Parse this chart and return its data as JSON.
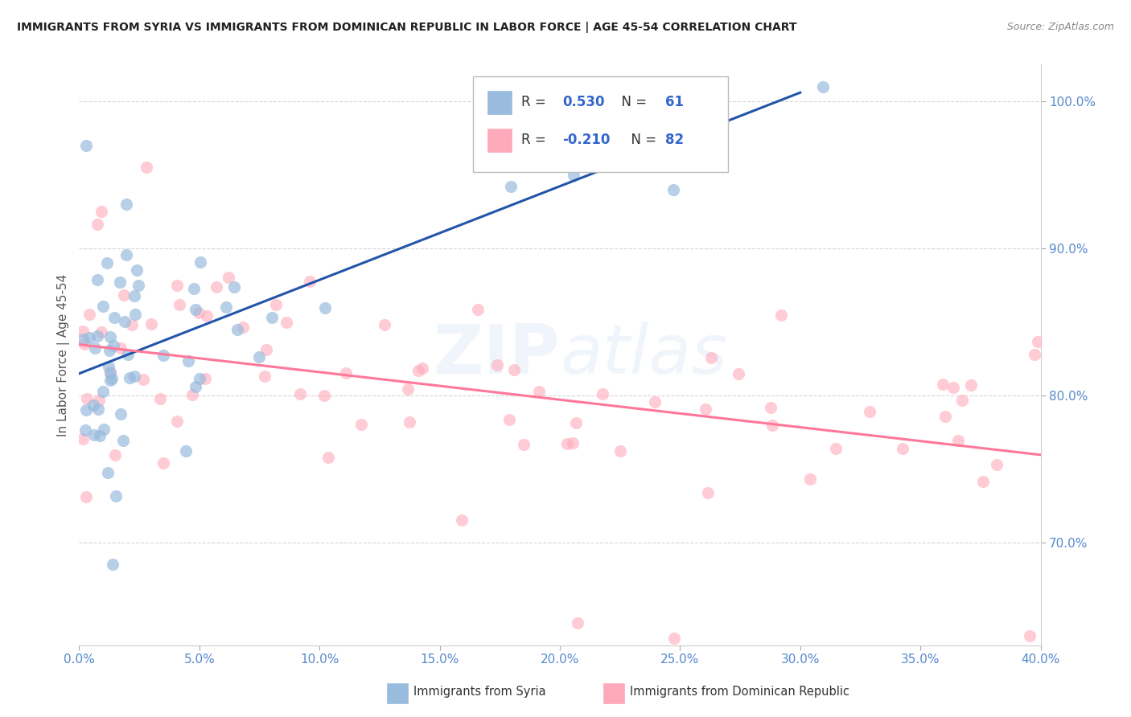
{
  "title": "IMMIGRANTS FROM SYRIA VS IMMIGRANTS FROM DOMINICAN REPUBLIC IN LABOR FORCE | AGE 45-54 CORRELATION CHART",
  "source": "Source: ZipAtlas.com",
  "ylabel_label": "In Labor Force | Age 45-54",
  "xmin": 0.0,
  "xmax": 0.4,
  "ymin": 0.63,
  "ymax": 1.025,
  "color_syria": "#99BBDD",
  "color_dr": "#FFAABB",
  "color_syria_line": "#2255AA",
  "color_dr_line": "#FF7799",
  "watermark": "ZIPAtlas",
  "label_syria": "Immigrants from Syria",
  "label_dr": "Immigrants from Dominican Republic",
  "yticks": [
    0.7,
    0.8,
    0.9,
    1.0
  ],
  "xticks": [
    0.0,
    0.05,
    0.1,
    0.15,
    0.2,
    0.25,
    0.3,
    0.35,
    0.4
  ],
  "r_syria": "0.530",
  "n_syria": "61",
  "r_dr": "-0.210",
  "n_dr": "82"
}
